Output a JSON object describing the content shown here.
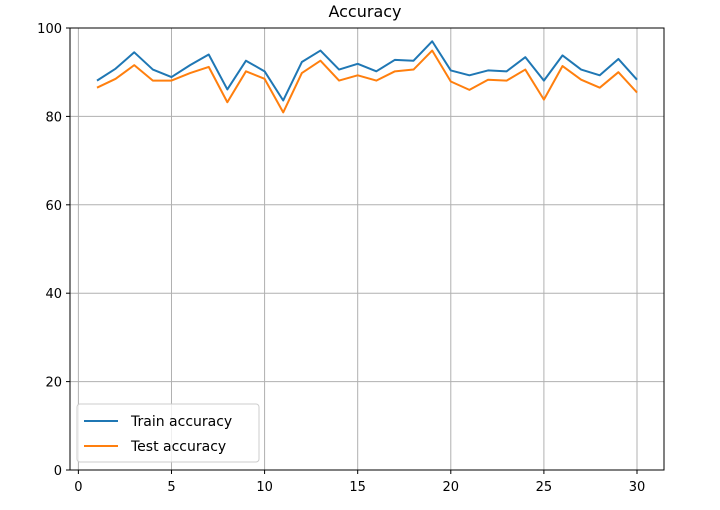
{
  "chart_data": {
    "type": "line",
    "title": "Accuracy",
    "xlabel": "",
    "ylabel": "",
    "xlim": [
      -0.45,
      31.45
    ],
    "ylim": [
      0,
      100
    ],
    "xticks": [
      0,
      5,
      10,
      15,
      20,
      25,
      30
    ],
    "yticks": [
      0,
      20,
      40,
      60,
      80,
      100
    ],
    "grid": true,
    "legend": "lower-left",
    "x": [
      1,
      2,
      3,
      4,
      5,
      6,
      7,
      8,
      9,
      10,
      11,
      12,
      13,
      14,
      15,
      16,
      17,
      18,
      19,
      20,
      21,
      22,
      23,
      24,
      25,
      26,
      27,
      28,
      29,
      30
    ],
    "series": [
      {
        "name": "Train accuracy",
        "color": "#1f77b4",
        "values": [
          88.1,
          90.8,
          94.5,
          90.6,
          88.9,
          91.6,
          94.0,
          86.1,
          92.6,
          90.2,
          83.6,
          92.3,
          94.9,
          90.6,
          91.9,
          90.2,
          92.8,
          92.6,
          97.0,
          90.4,
          89.3,
          90.4,
          90.2,
          93.4,
          88.1,
          93.8,
          90.6,
          89.3,
          93.0,
          88.3
        ],
        "style": {
          "key": "train"
        }
      },
      {
        "name": "Test accuracy",
        "color": "#ff7f0e",
        "values": [
          86.5,
          88.5,
          91.6,
          88.1,
          88.1,
          89.8,
          91.2,
          83.2,
          90.2,
          88.5,
          80.9,
          89.8,
          92.6,
          88.1,
          89.3,
          88.1,
          90.2,
          90.6,
          94.9,
          87.9,
          86.0,
          88.3,
          88.1,
          90.6,
          83.8,
          91.4,
          88.3,
          86.5,
          90.0,
          85.4
        ],
        "style": {
          "key": "test"
        }
      }
    ]
  }
}
